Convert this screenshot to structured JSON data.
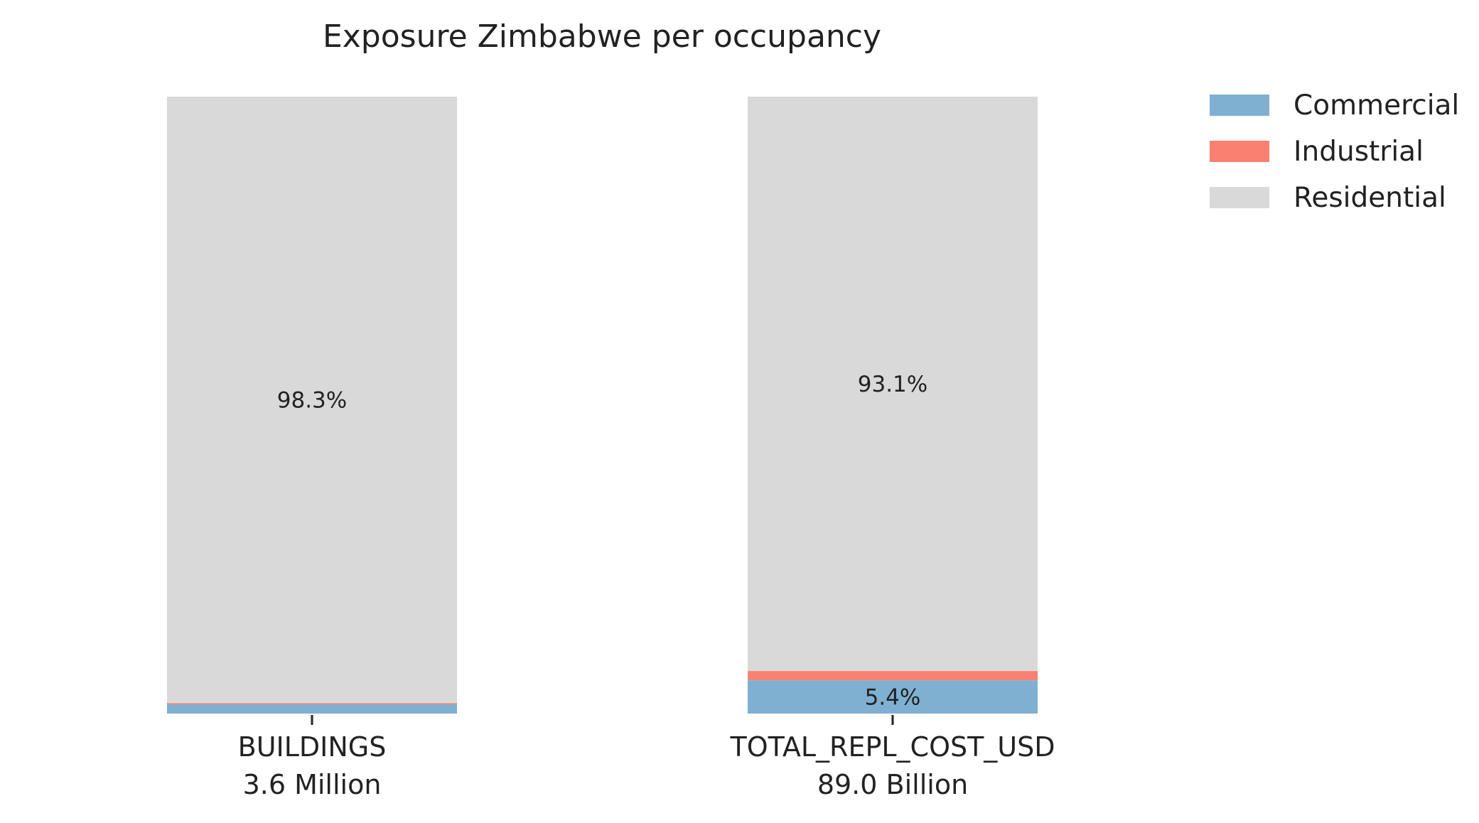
{
  "chart_data": {
    "type": "bar",
    "stacked": true,
    "normalized_percent": true,
    "title": "Exposure Zimbabwe per occupancy",
    "xlabel": "",
    "ylabel": "",
    "ylim": [
      0,
      100
    ],
    "grid": false,
    "legend_position": "top-right",
    "categories": [
      {
        "name": "BUILDINGS",
        "total_label": "3.6 Million"
      },
      {
        "name": "TOTAL_REPL_COST_USD",
        "total_label": "89.0 Billion"
      }
    ],
    "series": [
      {
        "name": "Commercial",
        "color": "#7fb0d2",
        "values": [
          1.5,
          5.4
        ],
        "labels": [
          "",
          "5.4%"
        ]
      },
      {
        "name": "Industrial",
        "color": "#fa8072",
        "values": [
          0.2,
          1.5
        ],
        "labels": [
          "",
          ""
        ]
      },
      {
        "name": "Residential",
        "color": "#d9d9d9",
        "values": [
          98.3,
          93.1
        ],
        "labels": [
          "98.3%",
          "93.1%"
        ]
      }
    ]
  }
}
